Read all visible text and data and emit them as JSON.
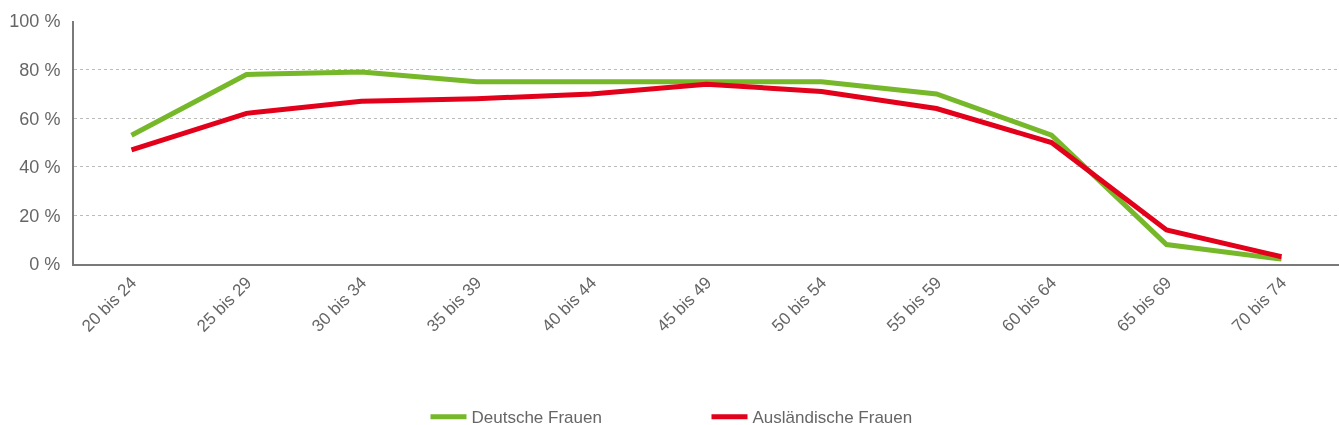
{
  "chart_data": {
    "type": "line",
    "categories": [
      "20 bis 24",
      "25 bis 29",
      "30 bis 34",
      "35 bis 39",
      "40 bis 44",
      "45 bis 49",
      "50 bis 54",
      "55 bis 59",
      "60 bis 64",
      "65 bis 69",
      "70 bis 74"
    ],
    "series": [
      {
        "name": "Deutsche Frauen",
        "color": "#76b82a",
        "values": [
          53,
          78,
          79,
          75,
          75,
          75,
          75,
          70,
          53,
          8,
          2
        ]
      },
      {
        "name": "Ausländische Frauen",
        "color": "#e2001a",
        "values": [
          47,
          62,
          67,
          68,
          70,
          74,
          71,
          64,
          50,
          14,
          3
        ]
      }
    ],
    "ylim": [
      0,
      100
    ],
    "yticks": [
      {
        "value": 0,
        "label": "0 %"
      },
      {
        "value": 20,
        "label": "20 %"
      },
      {
        "value": 40,
        "label": "40 %"
      },
      {
        "value": 60,
        "label": "60 %"
      },
      {
        "value": 80,
        "label": "80 %"
      },
      {
        "value": 100,
        "label": "100 %"
      }
    ],
    "grid": "y",
    "legend": "bottom",
    "line_style": "solid"
  }
}
